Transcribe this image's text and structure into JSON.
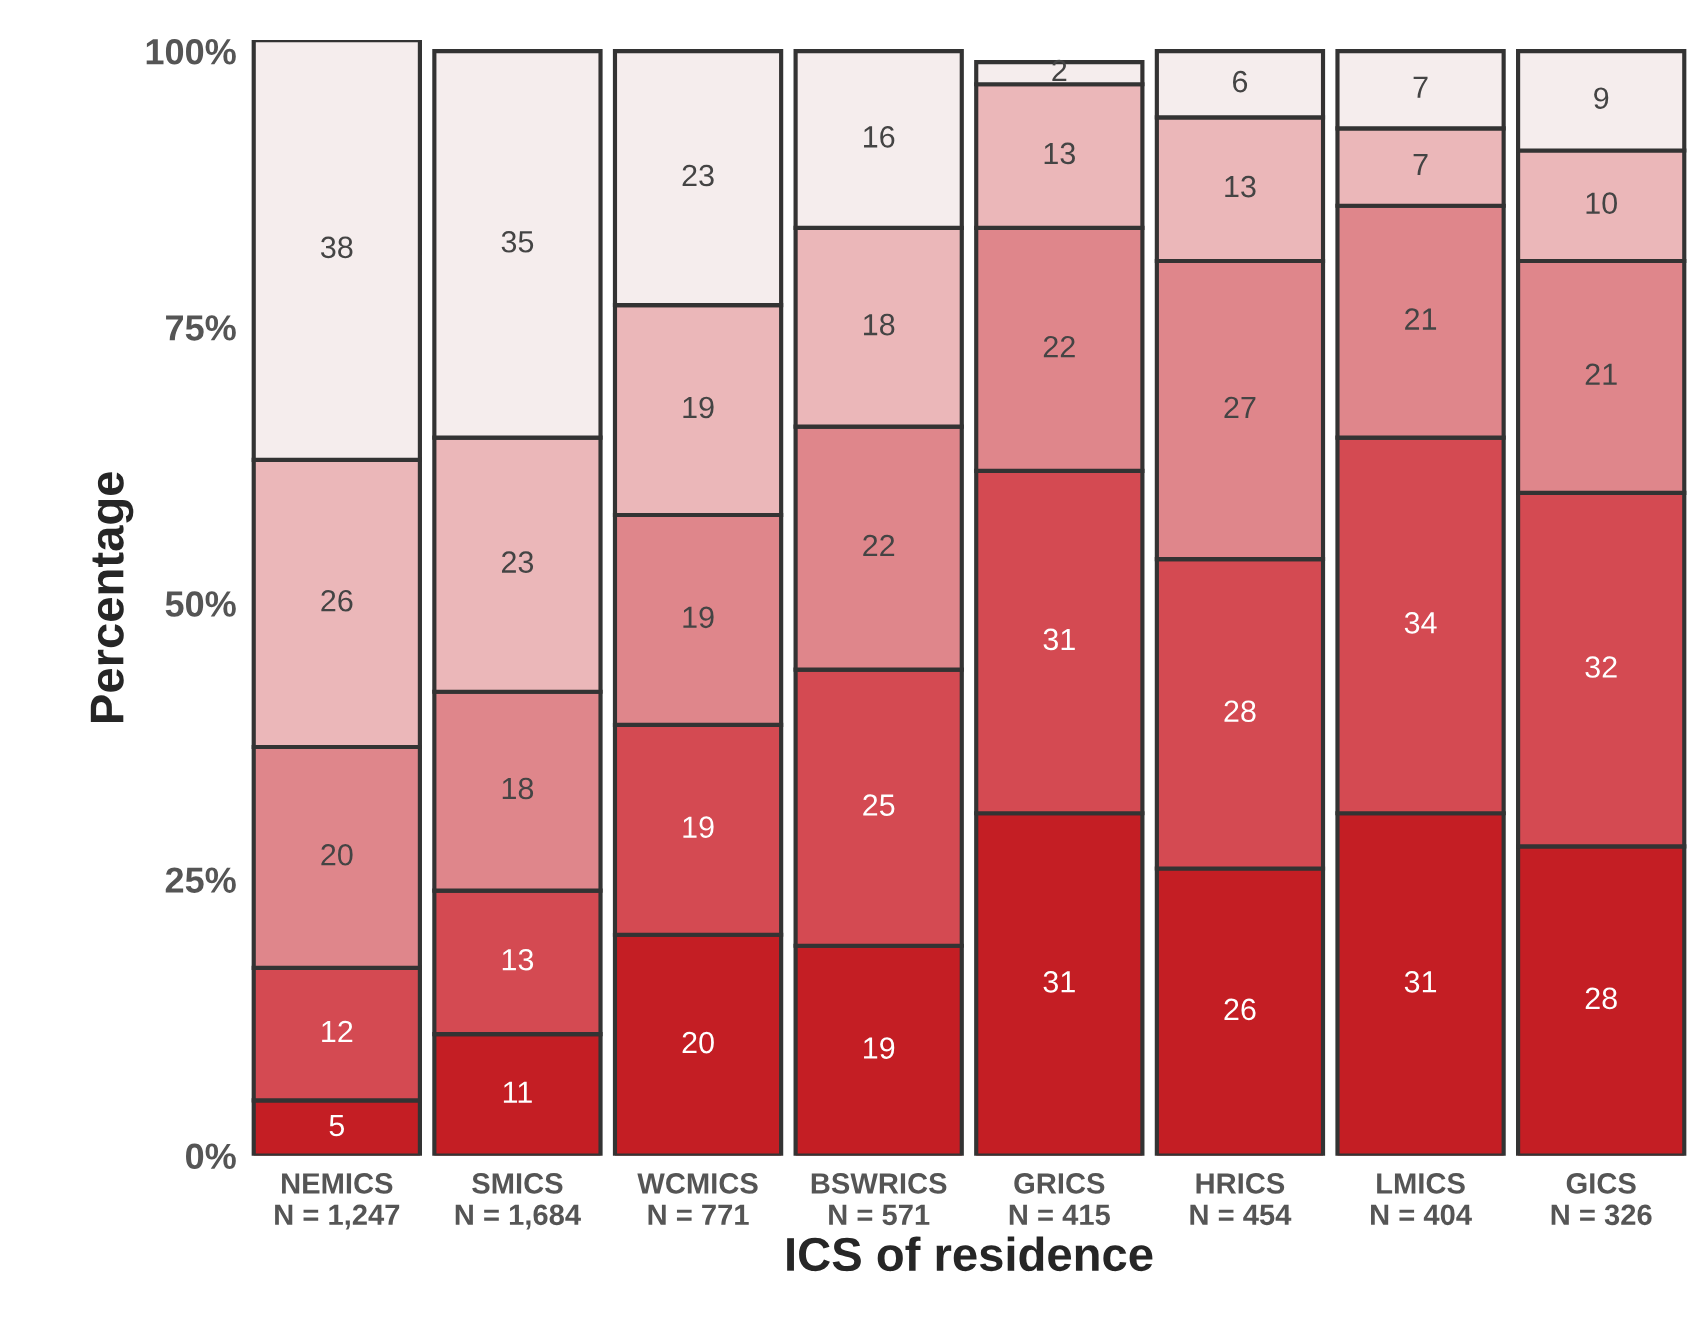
{
  "chart_data": {
    "type": "bar",
    "stacked": true,
    "xlabel": "ICS of residence",
    "ylabel": "Percentage",
    "categories": [
      "NEMICS\nN = 1,247",
      "SMICS\nN = 1,684",
      "WCMICS\nN = 771",
      "BSWRICS\nN = 571",
      "GRICS\nN = 415",
      "HRICS\nN = 454",
      "LMICS\nN = 404",
      "GICS\nN = 326"
    ],
    "series": [
      {
        "color": "#c41e24",
        "values": [
          5,
          11,
          20,
          19,
          31,
          26,
          31,
          28
        ]
      },
      {
        "color": "#d44a52",
        "values": [
          12,
          13,
          19,
          25,
          31,
          28,
          34,
          32
        ]
      },
      {
        "color": "#df868b",
        "values": [
          20,
          18,
          19,
          22,
          22,
          27,
          21,
          21
        ]
      },
      {
        "color": "#ebb7b9",
        "values": [
          26,
          23,
          19,
          18,
          13,
          13,
          7,
          10
        ]
      },
      {
        "color": "#f5eded",
        "values": [
          38,
          35,
          23,
          16,
          2,
          6,
          7,
          9
        ]
      }
    ],
    "ylim": [
      0,
      101
    ],
    "yticks": [
      {
        "value": 0,
        "label": "0%"
      },
      {
        "value": 25,
        "label": "25%"
      },
      {
        "value": 50,
        "label": "50%"
      },
      {
        "value": 75,
        "label": "75%"
      },
      {
        "value": 100,
        "label": "100%"
      }
    ],
    "data_labels": true,
    "grid": false,
    "legend": false
  }
}
